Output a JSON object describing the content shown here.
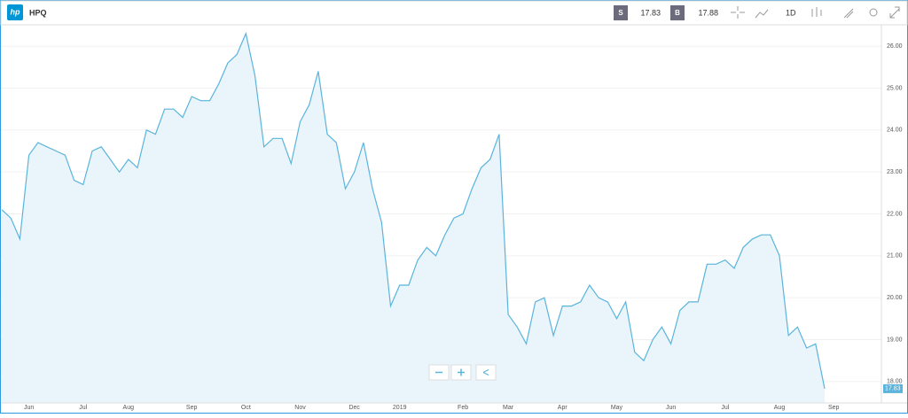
{
  "toolbar": {
    "logo": "hp",
    "symbol": "HPQ",
    "sell_label": "S",
    "sell": 17.83,
    "buy_label": "B",
    "buy": 17.88,
    "interval": "1D"
  },
  "chart_data": {
    "type": "area",
    "color": "#5ab4dc",
    "fill": "#e9f5fa",
    "grid": true,
    "categories": [
      null,
      null,
      null,
      "Jun",
      null,
      null,
      null,
      null,
      null,
      "Jul",
      null,
      null,
      null,
      null,
      "Aug",
      null,
      null,
      null,
      null,
      null,
      null,
      "Sep",
      null,
      null,
      null,
      null,
      null,
      "Oct",
      null,
      null,
      null,
      null,
      null,
      "Nov",
      null,
      null,
      null,
      null,
      null,
      "Dec",
      null,
      null,
      null,
      null,
      "2019",
      null,
      null,
      null,
      null,
      null,
      null,
      "Feb",
      null,
      null,
      null,
      null,
      "Mar",
      null,
      null,
      null,
      null,
      null,
      "Apr",
      null,
      null,
      null,
      null,
      null,
      "May",
      null,
      null,
      null,
      null,
      null,
      "Jun",
      null,
      null,
      null,
      null,
      null,
      "Jul",
      null,
      null,
      null,
      null,
      null,
      "Aug",
      null,
      null,
      null,
      null,
      null,
      "Sep"
    ],
    "values": [
      22.1,
      21.9,
      21.4,
      23.4,
      23.7,
      23.6,
      23.5,
      23.4,
      22.8,
      22.7,
      23.5,
      23.6,
      23.3,
      23.0,
      23.3,
      23.1,
      24.0,
      23.9,
      24.5,
      24.5,
      24.3,
      24.8,
      24.7,
      24.7,
      25.1,
      25.6,
      25.8,
      26.3,
      25.3,
      23.6,
      23.8,
      23.8,
      23.2,
      24.2,
      24.6,
      25.4,
      23.9,
      23.7,
      22.6,
      23.0,
      23.7,
      22.6,
      21.8,
      19.8,
      20.3,
      20.3,
      20.9,
      21.2,
      21.0,
      21.5,
      21.9,
      22.0,
      22.6,
      23.1,
      23.3,
      23.9,
      19.6,
      19.3,
      18.9,
      19.9,
      20.0,
      19.1,
      19.8,
      19.8,
      19.9,
      20.3,
      20.0,
      19.9,
      19.5,
      19.9,
      18.7,
      18.5,
      19.0,
      19.3,
      18.9,
      19.7,
      19.9,
      19.9,
      20.8,
      20.8,
      20.9,
      20.7,
      21.2,
      21.4,
      21.5,
      21.5,
      21.0,
      19.1,
      19.3,
      18.8,
      18.9,
      17.83,
      null
    ],
    "ylim": [
      17.49,
      26.51
    ],
    "yticks": [
      {
        "value": 18,
        "label": "18.00"
      },
      {
        "value": 19,
        "label": "19.00"
      },
      {
        "value": 20,
        "label": "20.00"
      },
      {
        "value": 21,
        "label": "21.00"
      },
      {
        "value": 22,
        "label": "22.00"
      },
      {
        "value": 23,
        "label": "23.00"
      },
      {
        "value": 24,
        "label": "24.00"
      },
      {
        "value": 25,
        "label": "25.00"
      },
      {
        "value": 26,
        "label": "26.00"
      }
    ]
  }
}
